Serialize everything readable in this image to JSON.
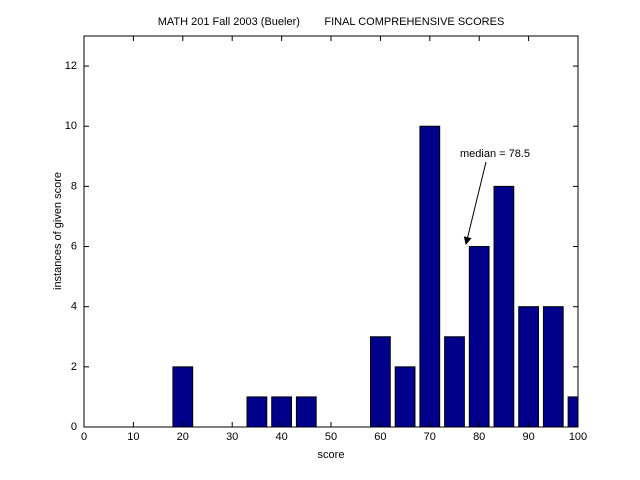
{
  "chart_data": {
    "type": "bar",
    "title": "MATH 201 Fall 2003 (Bueler)        FINAL COMPREHENSIVE SCORES",
    "xlabel": "score",
    "ylabel": "instances of given score",
    "annotation": "median = 78.5",
    "x": [
      20,
      35,
      40,
      45,
      60,
      65,
      70,
      75,
      80,
      85,
      90,
      95,
      100
    ],
    "values": [
      2,
      1,
      1,
      1,
      3,
      2,
      10,
      3,
      6,
      8,
      4,
      4,
      1
    ],
    "color": "#00008b",
    "xlim": [
      0,
      100
    ],
    "xticks": [
      0,
      10,
      20,
      30,
      40,
      50,
      60,
      70,
      80,
      90,
      100
    ],
    "ylim": [
      0,
      13
    ],
    "yticks": [
      0,
      2,
      4,
      6,
      8,
      10,
      12
    ],
    "grid": false
  }
}
